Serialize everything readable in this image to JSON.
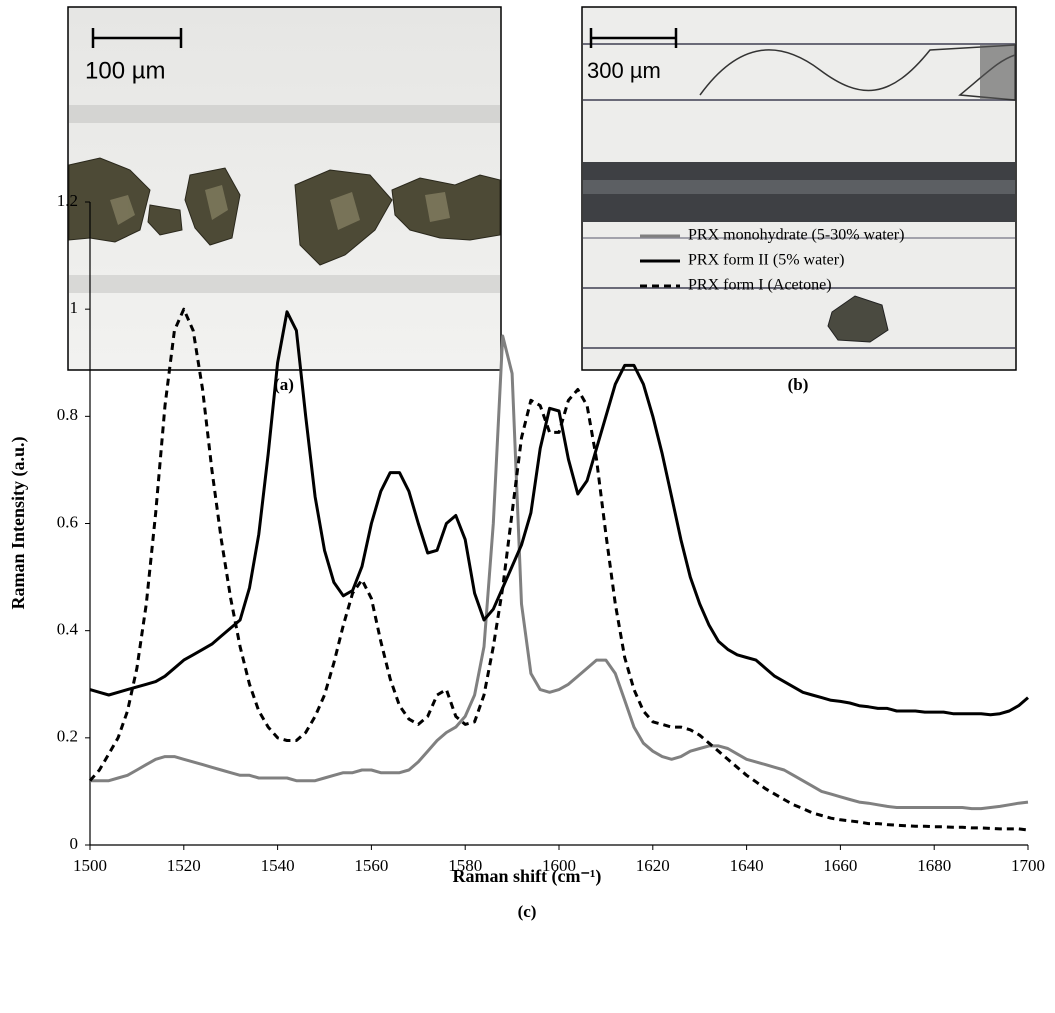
{
  "panels": [
    {
      "scale_label": "100 µm",
      "caption": "(a)"
    },
    {
      "scale_label": "300 µm",
      "caption": "(b)"
    }
  ],
  "caption_c": "(c)",
  "chart_data": {
    "type": "line",
    "xlabel": "Raman shift (cm⁻¹)",
    "ylabel": "Raman Intensity (a.u.)",
    "x": [
      1500,
      1502,
      1504,
      1506,
      1508,
      1510,
      1512,
      1514,
      1516,
      1518,
      1520,
      1522,
      1524,
      1526,
      1528,
      1530,
      1532,
      1534,
      1536,
      1538,
      1540,
      1542,
      1544,
      1546,
      1548,
      1550,
      1552,
      1554,
      1556,
      1558,
      1560,
      1562,
      1564,
      1566,
      1568,
      1570,
      1572,
      1574,
      1576,
      1578,
      1580,
      1582,
      1584,
      1586,
      1588,
      1590,
      1592,
      1594,
      1596,
      1598,
      1600,
      1602,
      1604,
      1606,
      1608,
      1610,
      1612,
      1614,
      1616,
      1618,
      1620,
      1622,
      1624,
      1626,
      1628,
      1630,
      1632,
      1634,
      1636,
      1638,
      1640,
      1642,
      1644,
      1646,
      1648,
      1650,
      1652,
      1654,
      1656,
      1658,
      1660,
      1662,
      1664,
      1666,
      1668,
      1670,
      1672,
      1674,
      1676,
      1678,
      1680,
      1682,
      1684,
      1686,
      1688,
      1690,
      1692,
      1694,
      1696,
      1698,
      1700
    ],
    "series": [
      {
        "name": "PRX monohydrate (5-30% water)",
        "color": "#808080",
        "style": "solid",
        "values": [
          0.12,
          0.12,
          0.12,
          0.125,
          0.13,
          0.14,
          0.15,
          0.16,
          0.165,
          0.165,
          0.16,
          0.155,
          0.15,
          0.145,
          0.14,
          0.135,
          0.13,
          0.13,
          0.125,
          0.125,
          0.125,
          0.125,
          0.12,
          0.12,
          0.12,
          0.125,
          0.13,
          0.135,
          0.135,
          0.14,
          0.14,
          0.135,
          0.135,
          0.135,
          0.14,
          0.155,
          0.175,
          0.195,
          0.21,
          0.22,
          0.24,
          0.28,
          0.37,
          0.6,
          0.95,
          0.88,
          0.45,
          0.32,
          0.29,
          0.285,
          0.29,
          0.3,
          0.315,
          0.33,
          0.345,
          0.345,
          0.32,
          0.27,
          0.22,
          0.19,
          0.175,
          0.165,
          0.16,
          0.165,
          0.175,
          0.18,
          0.185,
          0.185,
          0.18,
          0.17,
          0.16,
          0.155,
          0.15,
          0.145,
          0.14,
          0.13,
          0.12,
          0.11,
          0.1,
          0.095,
          0.09,
          0.085,
          0.08,
          0.078,
          0.075,
          0.072,
          0.07,
          0.07,
          0.07,
          0.07,
          0.07,
          0.07,
          0.07,
          0.07,
          0.068,
          0.068,
          0.07,
          0.072,
          0.075,
          0.078,
          0.08
        ]
      },
      {
        "name": "PRX form II (5% water)",
        "color": "#000000",
        "style": "solid",
        "values": [
          0.29,
          0.285,
          0.28,
          0.285,
          0.29,
          0.295,
          0.3,
          0.305,
          0.315,
          0.33,
          0.345,
          0.355,
          0.365,
          0.375,
          0.39,
          0.405,
          0.42,
          0.48,
          0.58,
          0.73,
          0.9,
          0.995,
          0.96,
          0.8,
          0.65,
          0.55,
          0.49,
          0.465,
          0.475,
          0.52,
          0.6,
          0.66,
          0.695,
          0.695,
          0.66,
          0.6,
          0.545,
          0.55,
          0.6,
          0.615,
          0.57,
          0.47,
          0.42,
          0.44,
          0.48,
          0.52,
          0.56,
          0.62,
          0.74,
          0.815,
          0.81,
          0.72,
          0.655,
          0.68,
          0.74,
          0.8,
          0.86,
          0.895,
          0.895,
          0.86,
          0.8,
          0.73,
          0.65,
          0.57,
          0.5,
          0.45,
          0.41,
          0.38,
          0.365,
          0.355,
          0.35,
          0.345,
          0.33,
          0.315,
          0.305,
          0.295,
          0.285,
          0.28,
          0.275,
          0.27,
          0.268,
          0.265,
          0.26,
          0.258,
          0.255,
          0.255,
          0.25,
          0.25,
          0.25,
          0.248,
          0.248,
          0.248,
          0.245,
          0.245,
          0.245,
          0.245,
          0.243,
          0.245,
          0.25,
          0.26,
          0.275
        ]
      },
      {
        "name": "PRX form I (Acetone)",
        "color": "#000000",
        "style": "dashed",
        "values": [
          0.12,
          0.14,
          0.17,
          0.2,
          0.25,
          0.33,
          0.45,
          0.62,
          0.82,
          0.96,
          1.0,
          0.96,
          0.85,
          0.7,
          0.57,
          0.46,
          0.37,
          0.3,
          0.25,
          0.22,
          0.2,
          0.195,
          0.195,
          0.21,
          0.24,
          0.28,
          0.34,
          0.41,
          0.47,
          0.495,
          0.46,
          0.38,
          0.31,
          0.26,
          0.235,
          0.225,
          0.24,
          0.28,
          0.29,
          0.24,
          0.225,
          0.23,
          0.28,
          0.37,
          0.48,
          0.62,
          0.76,
          0.83,
          0.82,
          0.77,
          0.77,
          0.83,
          0.85,
          0.82,
          0.72,
          0.58,
          0.45,
          0.35,
          0.29,
          0.25,
          0.23,
          0.225,
          0.22,
          0.22,
          0.215,
          0.205,
          0.19,
          0.175,
          0.16,
          0.145,
          0.13,
          0.118,
          0.105,
          0.095,
          0.085,
          0.075,
          0.068,
          0.06,
          0.055,
          0.05,
          0.047,
          0.045,
          0.043,
          0.04,
          0.04,
          0.038,
          0.037,
          0.036,
          0.035,
          0.035,
          0.034,
          0.034,
          0.033,
          0.033,
          0.032,
          0.032,
          0.031,
          0.03,
          0.03,
          0.03,
          0.028
        ]
      }
    ],
    "xlim": [
      1500,
      1700
    ],
    "xticks": [
      1500,
      1520,
      1540,
      1560,
      1580,
      1600,
      1620,
      1640,
      1660,
      1680,
      1700
    ],
    "ylim": [
      0,
      1.2
    ],
    "yticks": [
      0,
      0.2,
      0.4,
      0.6,
      0.8,
      1,
      1.2
    ],
    "grid": false,
    "legend": "upper right"
  }
}
